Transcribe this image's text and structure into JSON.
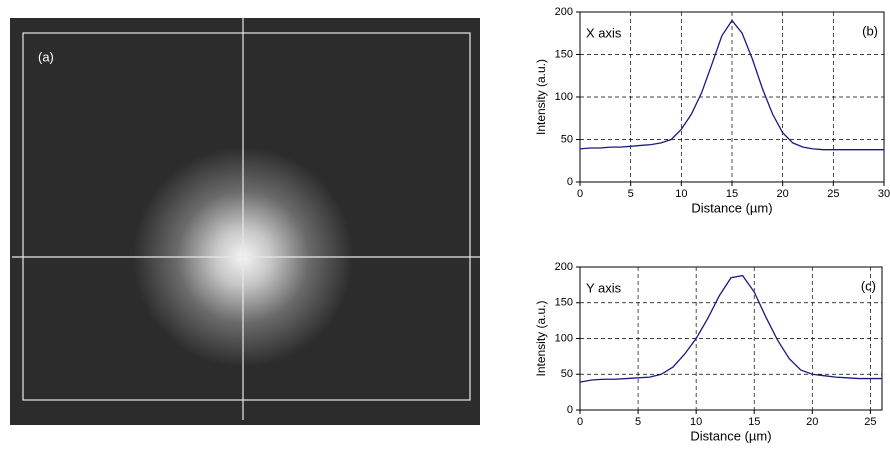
{
  "panel_a": {
    "label": "(a)"
  },
  "chart_data": [
    {
      "type": "line",
      "annotation": "X axis",
      "panel": "(b)",
      "x_label": "Distance (µm)",
      "y_label": "Intensity (a.u.)",
      "xlim": [
        0,
        30
      ],
      "xticks": [
        0,
        5,
        10,
        15,
        20,
        25,
        30
      ],
      "ylim": [
        0,
        200
      ],
      "yticks": [
        0,
        50,
        100,
        150,
        200
      ],
      "grid": true,
      "x": [
        0,
        1,
        2,
        3,
        4,
        5,
        6,
        7,
        8,
        9,
        10,
        11,
        12,
        13,
        14,
        15,
        16,
        17,
        18,
        19,
        20,
        21,
        22,
        23,
        24,
        25,
        26,
        27,
        28,
        29,
        30
      ],
      "series": [
        {
          "color": "#1a1a80",
          "values": [
            39,
            40,
            40,
            41,
            41,
            42,
            43,
            44,
            46,
            50,
            62,
            80,
            105,
            138,
            172,
            190,
            175,
            145,
            110,
            80,
            58,
            46,
            41,
            39,
            38,
            38,
            38,
            38,
            38,
            38,
            38
          ]
        }
      ]
    },
    {
      "type": "line",
      "annotation": "Y axis",
      "panel": "(c)",
      "x_label": "Distance (µm)",
      "y_label": "Intensity (a.u.)",
      "xlim": [
        0,
        26
      ],
      "xticks": [
        0,
        5,
        10,
        15,
        20,
        25
      ],
      "ylim": [
        0,
        200
      ],
      "yticks": [
        0,
        50,
        100,
        150,
        200
      ],
      "grid": true,
      "x": [
        0,
        1,
        2,
        3,
        4,
        5,
        6,
        7,
        8,
        9,
        10,
        11,
        12,
        13,
        14,
        15,
        16,
        17,
        18,
        19,
        20,
        21,
        22,
        23,
        24,
        25,
        26
      ],
      "series": [
        {
          "color": "#1a1a80",
          "values": [
            39,
            42,
            43,
            43,
            44,
            45,
            46,
            50,
            60,
            78,
            100,
            128,
            160,
            185,
            188,
            165,
            130,
            98,
            72,
            56,
            50,
            48,
            46,
            45,
            44,
            44,
            44
          ]
        }
      ]
    }
  ]
}
